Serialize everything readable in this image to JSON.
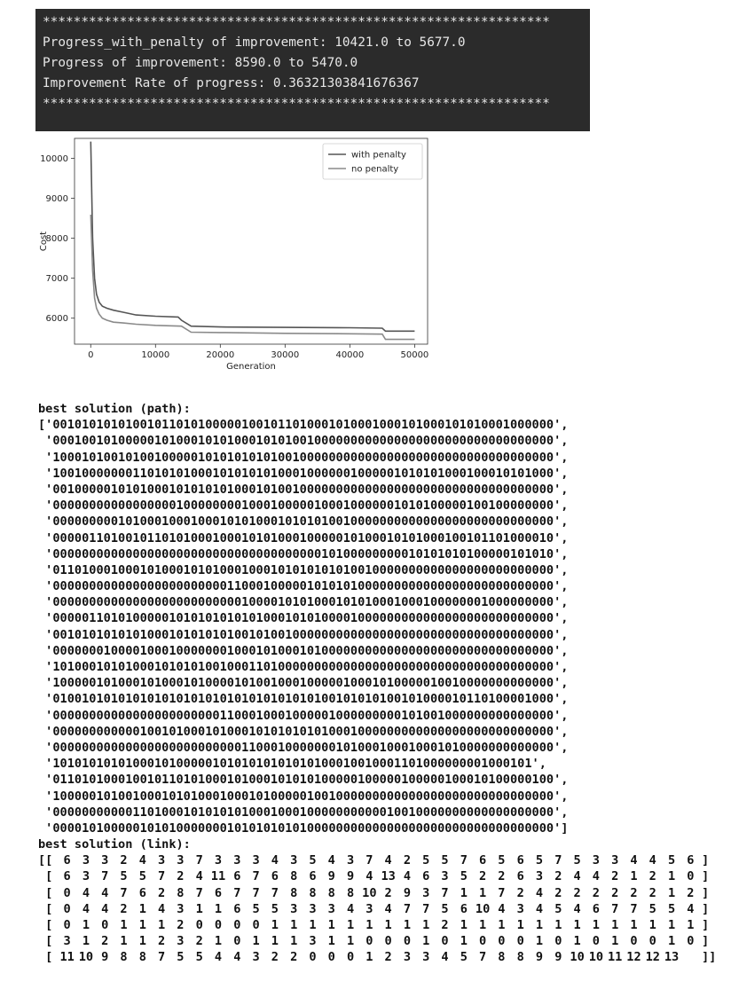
{
  "terminal": {
    "lines": [
      "******************************************************************",
      "Progress_with_penalty of improvement: 10421.0 to 5677.0",
      "Progress of improvement: 8590.0 to 5470.0",
      "Improvement Rate of progress: 0.36321303841676367",
      "******************************************************************"
    ]
  },
  "chart_data": {
    "type": "line",
    "title": "",
    "xlabel": "Generation",
    "ylabel": "Cost",
    "xlim": [
      -2500,
      52000
    ],
    "ylim": [
      5350,
      10500
    ],
    "x_ticks": [
      0,
      10000,
      20000,
      30000,
      40000,
      50000
    ],
    "x_tick_labels": [
      "0",
      "10000",
      "20000",
      "30000",
      "40000",
      "50000"
    ],
    "y_ticks": [
      6000,
      7000,
      8000,
      9000,
      10000
    ],
    "y_tick_labels": [
      "6000",
      "7000",
      "8000",
      "9000",
      "10000"
    ],
    "grid": false,
    "legend_position": "top-right",
    "series": [
      {
        "name": "with penalty",
        "color": "#555555",
        "x": [
          0,
          300,
          600,
          900,
          1300,
          1800,
          2500,
          3500,
          5000,
          7000,
          10000,
          13500,
          14000,
          15500,
          20000,
          30000,
          40000,
          45000,
          45500,
          50000
        ],
        "y": [
          10421,
          8000,
          7000,
          6600,
          6400,
          6300,
          6250,
          6200,
          6150,
          6080,
          6050,
          6030,
          5950,
          5800,
          5780,
          5770,
          5760,
          5750,
          5677,
          5677
        ]
      },
      {
        "name": "no penalty",
        "color": "#8a8a8a",
        "x": [
          0,
          300,
          600,
          900,
          1300,
          1800,
          2500,
          3500,
          5000,
          7000,
          10000,
          14000,
          15500,
          20000,
          30000,
          40000,
          45000,
          45500,
          50000
        ],
        "y": [
          8590,
          7200,
          6500,
          6250,
          6100,
          6000,
          5950,
          5900,
          5880,
          5850,
          5820,
          5800,
          5650,
          5640,
          5620,
          5610,
          5600,
          5470,
          5470
        ]
      }
    ]
  },
  "output": {
    "path_header": "best solution (path):",
    "path_lines": [
      "['001010101010010110101000001001011010001010001000101000101010001000000',",
      " '000100101000001010001010100010101001000000000000000000000000000000000',",
      " '100010100101001000001010101010100100000000000000000000000000000000000',",
      " '100100000001101010100010101010100010000001000001010101000100010101000',",
      " '001000001010100010101010100010100100000000000000000000000000000000000',",
      " '000000000000000001000000001000100000100010000001010100000100100000000',",
      " '000000000101000100010001010100010101010010000000000000000000000000000',",
      " '000001101001011010100010001010100010000010100010101000100101101000010',",
      " '000000000000000000000000000000000000010100000000010101010100000101010',",
      " '011010001000101000101010001000101010101010010000000000000000000000000',",
      " '000000000000000000000000110001000001010101000000000000000000000000000',",
      " '000000000000000000000000001000010101000101010001000100000001000000000',",
      " '000001101010000010101010101010001010100001000000000000000000000000000',",
      " '001010101010100010101010100101001000000000000000000000000000000000000',",
      " '000000010000100010000000100010100010100000000000000000000000000000000',",
      " '101000101010001010101001000110100000000000000000000000000000000000000',",
      " '100000101000101000101000010100100010000010001010000010010000000000000',",
      " '010010101010101010101010101010101010100101010100101000010110100001000',",
      " '000000000000000000000001100010001000001000000000101001000000000000000',",
      " '000000000000100101000101000101010101010001000000000000000000000000000',",
      " '000000000000000000000000001100010000000101000100010001010000000000000',",
      " '101010101010001010000010101010101010100010010001101000000001000101',",
      " '011010100010010110101000101000101010100000100000100000100010100000100',",
      " '100000101001000101010001000101000001001000000000000000000000000000000',",
      " '000000000001101000101010101000100010000000000010010000000000000000000',",
      " '000010100000101010000000101010101010000000000000000000000000000000000']"
    ],
    "link_header": "best solution (link):",
    "link_rows": [
      [
        "6",
        "3",
        "3",
        "2",
        "4",
        "3",
        "3",
        "7",
        "3",
        "3",
        "3",
        "4",
        "3",
        "5",
        "4",
        "3",
        "7",
        "4",
        "2",
        "5",
        "5",
        "7",
        "6",
        "5",
        "6",
        "5",
        "7",
        "5",
        "3",
        "3",
        "4",
        "4",
        "5",
        "6"
      ],
      [
        "6",
        "3",
        "7",
        "5",
        "5",
        "7",
        "2",
        "4",
        "11",
        "6",
        "7",
        "6",
        "8",
        "6",
        "9",
        "9",
        "4",
        "13",
        "4",
        "6",
        "3",
        "5",
        "2",
        "2",
        "6",
        "3",
        "2",
        "4",
        "4",
        "2",
        "1",
        "2",
        "1",
        "0"
      ],
      [
        "0",
        "4",
        "4",
        "7",
        "6",
        "2",
        "8",
        "7",
        "6",
        "7",
        "7",
        "7",
        "8",
        "8",
        "8",
        "8",
        "10",
        "2",
        "9",
        "3",
        "7",
        "1",
        "1",
        "7",
        "2",
        "4",
        "2",
        "2",
        "2",
        "2",
        "2",
        "2",
        "1",
        "2"
      ],
      [
        "0",
        "4",
        "4",
        "2",
        "1",
        "4",
        "3",
        "1",
        "1",
        "6",
        "5",
        "5",
        "3",
        "3",
        "3",
        "4",
        "3",
        "4",
        "7",
        "7",
        "5",
        "6",
        "10",
        "4",
        "3",
        "4",
        "5",
        "4",
        "6",
        "7",
        "7",
        "5",
        "5",
        "4"
      ],
      [
        "0",
        "1",
        "0",
        "1",
        "1",
        "1",
        "2",
        "0",
        "0",
        "0",
        "0",
        "1",
        "1",
        "1",
        "1",
        "1",
        "1",
        "1",
        "1",
        "1",
        "2",
        "1",
        "1",
        "1",
        "1",
        "1",
        "1",
        "1",
        "1",
        "1",
        "1",
        "1",
        "1",
        "1"
      ],
      [
        "3",
        "1",
        "2",
        "1",
        "1",
        "2",
        "3",
        "2",
        "1",
        "0",
        "1",
        "1",
        "1",
        "3",
        "1",
        "1",
        "0",
        "0",
        "0",
        "1",
        "0",
        "1",
        "0",
        "0",
        "0",
        "1",
        "0",
        "1",
        "0",
        "1",
        "0",
        "0",
        "1",
        "0"
      ],
      [
        "11",
        "10",
        "9",
        "8",
        "8",
        "7",
        "5",
        "5",
        "4",
        "4",
        "3",
        "2",
        "2",
        "0",
        "0",
        "0",
        "1",
        "2",
        "3",
        "3",
        "4",
        "5",
        "7",
        "8",
        "8",
        "9",
        "9",
        "10",
        "10",
        "11",
        "12",
        "12",
        "13"
      ]
    ]
  }
}
